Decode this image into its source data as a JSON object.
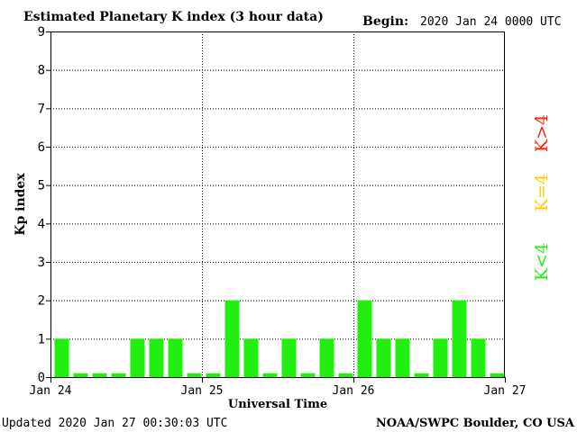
{
  "chart_data": {
    "type": "bar",
    "title": "Estimated Planetary K index (3 hour data)",
    "begin_label": "Begin:",
    "begin_value": "2020 Jan 24 0000 UTC",
    "xlabel": "Universal Time",
    "ylabel": "Kp index",
    "ylim": [
      0,
      9
    ],
    "yticks": [
      "0",
      "1",
      "2",
      "3",
      "4",
      "5",
      "6",
      "7",
      "8",
      "9"
    ],
    "xtick_labels": [
      "Jan 24",
      "Jan 25",
      "Jan 26",
      "Jan 27"
    ],
    "grid": true,
    "bar_color": "#22ee11",
    "values": [
      1,
      0.1,
      0.1,
      0.1,
      1,
      1,
      1,
      0.1,
      0.1,
      2,
      1,
      0.1,
      1,
      0.1,
      1,
      0.1,
      2,
      1,
      1,
      0.1,
      1,
      2,
      1,
      0.1
    ],
    "legend": [
      {
        "label": "K>4",
        "color": "#ff2200"
      },
      {
        "label": "K=4",
        "color": "#ffcc00"
      },
      {
        "label": "K<4",
        "color": "#22ee11"
      }
    ]
  },
  "footer": {
    "updated": "Updated 2020 Jan 27 00:30:03 UTC",
    "source": "NOAA/SWPC Boulder, CO USA"
  }
}
